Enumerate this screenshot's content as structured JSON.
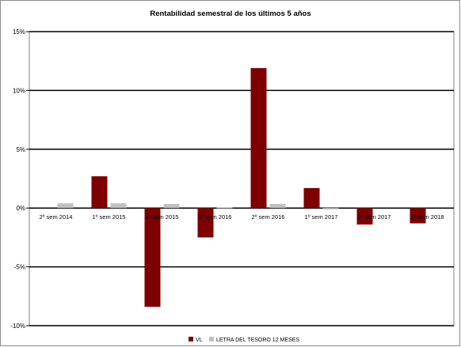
{
  "chart_data": {
    "type": "bar",
    "title": "Rentabilidad semestral de los últimos 5 años",
    "categories": [
      "2º sem 2014",
      "1º sem 2015",
      "2º sem 2015",
      "1º sem 2016",
      "2º sem 2016",
      "1º sem 2017",
      "2º sem 2017",
      "1º sem 2018"
    ],
    "series": [
      {
        "name": "VL",
        "color": "#7f0000",
        "values": [
          null,
          2.7,
          -8.4,
          -2.5,
          11.9,
          1.7,
          -1.4,
          -1.3
        ]
      },
      {
        "name": "LETRA DEL TESORO 12 MESES",
        "color": "#c0c0c0",
        "values": [
          0.4,
          0.4,
          0.35,
          0.05,
          0.35,
          -0.1,
          null,
          null
        ]
      }
    ],
    "ylim": [
      -10,
      15
    ],
    "yticks": [
      15,
      10,
      5,
      0,
      -5,
      -10
    ],
    "ytick_labels": [
      "15%",
      "10%",
      "5%",
      "0%",
      "-5%",
      "-10%"
    ],
    "gridlines": "horizontal",
    "legend": "bottom-center"
  }
}
